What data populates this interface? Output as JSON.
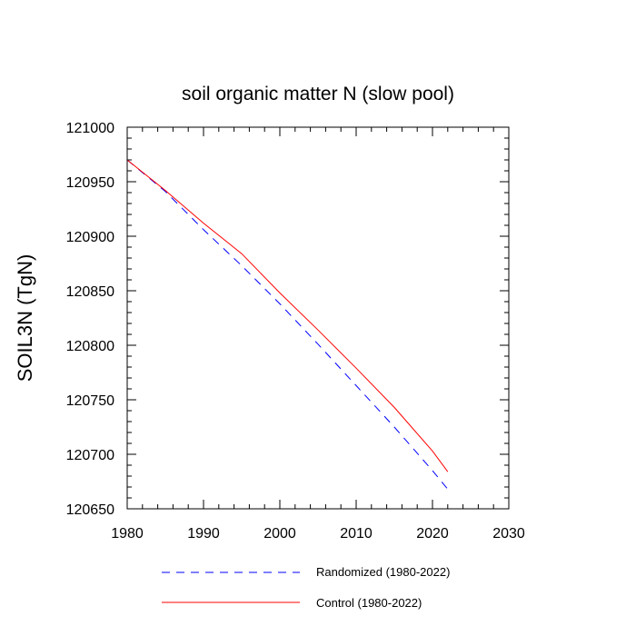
{
  "chart_data": {
    "type": "line",
    "title": "soil organic matter N (slow pool)",
    "xlabel": "",
    "ylabel": "SOIL3N  (TgN)",
    "xlim": [
      1980,
      2030
    ],
    "ylim": [
      120650,
      121000
    ],
    "x_ticks": [
      1980,
      1990,
      2000,
      2010,
      2020,
      2030
    ],
    "y_ticks": [
      120650,
      120700,
      120750,
      120800,
      120850,
      120900,
      120950,
      121000
    ],
    "x_tick_labels": [
      "1980",
      "1990",
      "2000",
      "2010",
      "2020",
      "2030"
    ],
    "y_tick_labels": [
      "120650",
      "120700",
      "120750",
      "120800",
      "120850",
      "120900",
      "120950",
      "121000"
    ],
    "grid": false,
    "legend_position": "bottom",
    "series": [
      {
        "name": "Randomized (1980-2022)",
        "color": "#0000ff",
        "style": "dashed",
        "x": [
          1980,
          1985,
          1990,
          1995,
          2000,
          2005,
          2010,
          2015,
          2020,
          2022
        ],
        "y": [
          120970,
          120941,
          120906,
          120873,
          120838,
          120801,
          120763,
          120725,
          120685,
          120668
        ]
      },
      {
        "name": "Control (1980-2022)",
        "color": "#ff0000",
        "style": "solid",
        "x": [
          1980,
          1985,
          1990,
          1995,
          2000,
          2005,
          2010,
          2015,
          2020,
          2022
        ],
        "y": [
          120970,
          120942,
          120912,
          120884,
          120848,
          120814,
          120779,
          120743,
          120703,
          120684
        ]
      }
    ]
  }
}
